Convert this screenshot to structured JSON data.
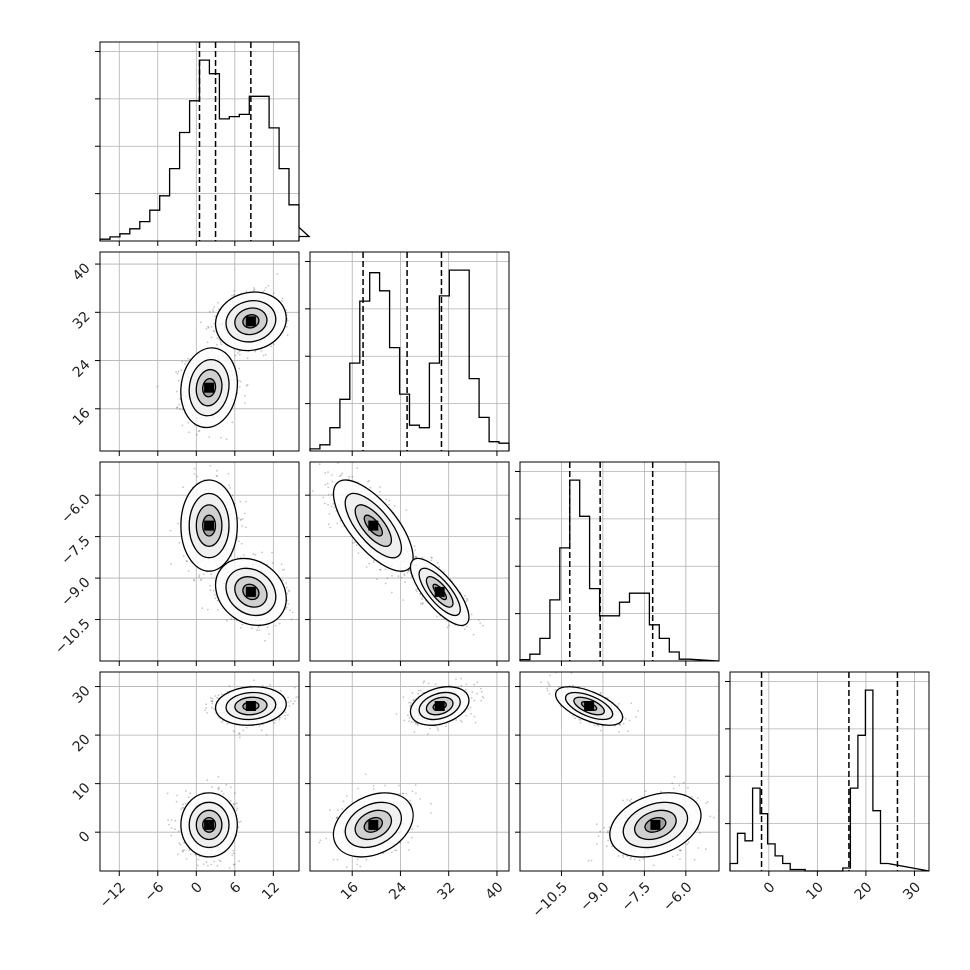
{
  "chart_data": {
    "type": "corner",
    "n_params": 4,
    "grid": true,
    "colors": {
      "line": "#000000",
      "grid": "#b0b0b0",
      "scatter": "#000000",
      "background": "#ffffff"
    },
    "params": [
      {
        "range": [
          -15,
          16
        ],
        "ticks": [
          -12,
          -6,
          0,
          6,
          12
        ],
        "tick_labels": [
          "−12",
          "−6",
          "0",
          "6",
          "12"
        ],
        "quantiles": [
          0.5,
          3.0,
          8.5
        ],
        "hist_start": -15,
        "hist_step": 1.55,
        "hist_counts": [
          0.4,
          0.9,
          1.6,
          2.7,
          4.3,
          6.8,
          10,
          16,
          24,
          31,
          40,
          37,
          27,
          27.5,
          28,
          32,
          32,
          25,
          16,
          8,
          3,
          1
        ]
      },
      {
        "range": [
          9,
          42
        ],
        "ticks": [
          16,
          24,
          32,
          40
        ],
        "tick_labels": [
          "16",
          "24",
          "32",
          "40"
        ],
        "quantiles": [
          17.8,
          25.1,
          30.8
        ],
        "hist_start": 9,
        "hist_step": 1.65,
        "hist_counts": [
          0.4,
          1.2,
          4.5,
          10,
          17,
          29,
          34.5,
          31,
          20,
          11,
          5,
          4.5,
          17,
          30,
          35,
          35,
          14,
          6.5,
          1.8,
          1.5
        ]
      },
      {
        "range": [
          -12.0,
          -4.8
        ],
        "ticks": [
          -10.5,
          -9.0,
          -7.5,
          -6.0
        ],
        "tick_labels": [
          "−10.5",
          "−9.0",
          "−7.5",
          "−6.0"
        ],
        "quantiles": [
          -10.2,
          -9.1,
          -7.2
        ],
        "hist_start": -12.0,
        "hist_step": 0.36,
        "hist_counts": [
          0.3,
          1.5,
          5,
          13.5,
          25,
          40,
          32,
          16,
          10,
          10,
          13,
          15,
          15,
          8,
          5,
          2,
          0.4
        ]
      },
      {
        "range": [
          -8,
          33
        ],
        "ticks": [
          0,
          10,
          20,
          30
        ],
        "tick_labels": [
          "0",
          "10",
          "20",
          "30"
        ],
        "quantiles": [
          -1.5,
          16.5,
          26.5
        ],
        "hist_start": -8,
        "hist_step": 1.55,
        "hist_counts": [
          0.5,
          2.5,
          2.0,
          5.5,
          3.8,
          1.8,
          1.0,
          0.5,
          0.1,
          0.1,
          0,
          0,
          0,
          0,
          0,
          0.2,
          5.5,
          9.0,
          12.0,
          4.0,
          0.5
        ]
      }
    ],
    "pair_ticks": {
      "p1": {
        "ticks": [
          16,
          24,
          32,
          40
        ],
        "tick_labels": [
          "16",
          "24",
          "32",
          "40"
        ]
      },
      "p2": {
        "ticks": [
          -10.5,
          -9.0,
          -7.5,
          -6.0
        ],
        "tick_labels": [
          "−10.5",
          "−9.0",
          "−7.5",
          "−6.0"
        ]
      },
      "p3": {
        "ticks": [
          0,
          10,
          20,
          30
        ],
        "tick_labels": [
          "0",
          "10",
          "20",
          "30"
        ]
      }
    },
    "modes": [
      {
        "means": [
          2,
          19.5,
          -7.1,
          1.5
        ],
        "sds": [
          2.0,
          3.0,
          0.75,
          3.0
        ],
        "weight": 0.5
      },
      {
        "means": [
          8.5,
          30.5,
          -9.5,
          26.0
        ],
        "sds": [
          2.5,
          2.2,
          0.55,
          1.8
        ],
        "weight": 0.5
      }
    ],
    "pair_correlations": {
      "0-1": [
        0.1,
        0.1
      ],
      "0-2": [
        0.0,
        -0.2
      ],
      "0-3": [
        0.0,
        0.1
      ],
      "1-2": [
        -0.7,
        -0.75
      ],
      "1-3": [
        0.3,
        0.3
      ],
      "2-3": [
        0.3,
        -0.6
      ]
    }
  }
}
